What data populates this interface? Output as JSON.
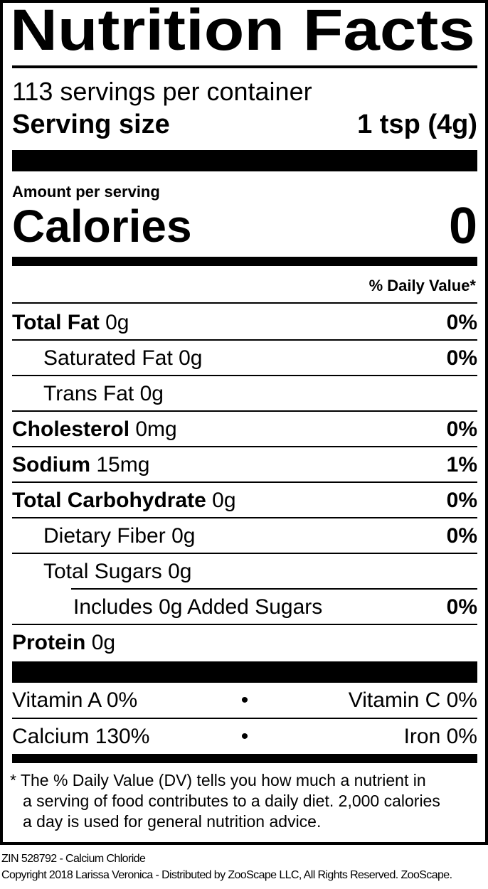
{
  "title": "Nutrition Facts",
  "servings_per_container": "113 servings per container",
  "serving_size_label": "Serving size",
  "serving_size_value": "1 tsp (4g)",
  "amount_per_serving": "Amount per serving",
  "calories_label": "Calories",
  "calories_value": "0",
  "daily_value_header": "% Daily Value*",
  "nutrients": [
    {
      "name": "Total Fat",
      "amount": "0g",
      "dv": "0%"
    },
    {
      "name": "Saturated Fat",
      "amount": "0g",
      "dv": "0%"
    },
    {
      "name": "Trans Fat",
      "amount": "0g",
      "dv": ""
    },
    {
      "name": "Cholesterol",
      "amount": "0mg",
      "dv": "0%"
    },
    {
      "name": "Sodium",
      "amount": "15mg",
      "dv": "1%"
    },
    {
      "name": "Total Carbohydrate",
      "amount": "0g",
      "dv": "0%"
    },
    {
      "name": "Dietary Fiber",
      "amount": "0g",
      "dv": "0%"
    },
    {
      "name": "Total Sugars",
      "amount": "0g",
      "dv": ""
    },
    {
      "name": "Includes 0g Added Sugars",
      "amount": "",
      "dv": "0%"
    },
    {
      "name": "Protein",
      "amount": "0g",
      "dv": ""
    }
  ],
  "vitamins": {
    "row1_left": "Vitamin A 0%",
    "row1_right": "Vitamin C 0%",
    "row2_left": "Calcium 130%",
    "row2_right": "Iron 0%",
    "separator": "•"
  },
  "footnote": [
    "* The % Daily Value (DV) tells you how much a nutrient in",
    "a serving of food contributes to a daily diet. 2,000 calories",
    "a day is used for general nutrition advice."
  ],
  "product_line": "ZIN 528792 - Calcium Chloride",
  "copyright": "Copyright 2018 Larissa Veronica - Distributed by ZooScape LLC, All Rights Reserved. ZooScape."
}
